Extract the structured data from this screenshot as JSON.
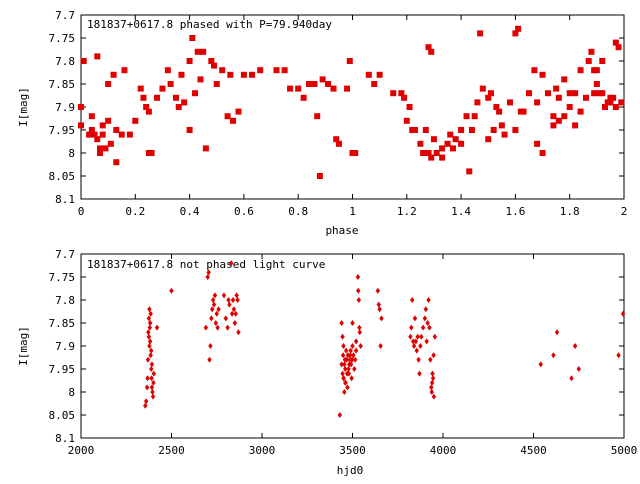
{
  "chart_data": [
    {
      "type": "scatter",
      "title": "181837+0617.8 phased with P=79.940day",
      "xlabel": "phase",
      "ylabel": "I[mag]",
      "xlim": [
        0,
        2
      ],
      "ylim": [
        7.7,
        8.1
      ],
      "y_inverted": true,
      "grid": false,
      "marker_color": "#e00000",
      "x_ticks": [
        "0",
        "0.2",
        "0.4",
        "0.6",
        "0.8",
        "1",
        "1.2",
        "1.4",
        "1.6",
        "1.8",
        "2"
      ],
      "x_tick_values": [
        0,
        0.2,
        0.4,
        0.6,
        0.8,
        1.0,
        1.2,
        1.4,
        1.6,
        1.8,
        2.0
      ],
      "y_ticks": [
        "7.7",
        "7.75",
        "7.8",
        "7.85",
        "7.9",
        "7.95",
        "8",
        "8.05",
        "8.1"
      ],
      "y_tick_values": [
        7.7,
        7.75,
        7.8,
        7.85,
        7.9,
        7.95,
        8.0,
        8.05,
        8.1
      ],
      "points": [
        [
          0.0,
          7.9
        ],
        [
          0.0,
          7.94
        ],
        [
          0.01,
          7.8
        ],
        [
          0.03,
          7.96
        ],
        [
          0.04,
          7.92
        ],
        [
          0.04,
          7.95
        ],
        [
          0.05,
          7.96
        ],
        [
          0.06,
          7.79
        ],
        [
          0.06,
          7.97
        ],
        [
          0.07,
          7.99
        ],
        [
          0.07,
          8.0
        ],
        [
          0.08,
          7.94
        ],
        [
          0.08,
          7.96
        ],
        [
          0.09,
          7.99
        ],
        [
          0.1,
          7.85
        ],
        [
          0.1,
          7.93
        ],
        [
          0.11,
          7.98
        ],
        [
          0.12,
          7.83
        ],
        [
          0.13,
          7.95
        ],
        [
          0.13,
          8.02
        ],
        [
          0.15,
          7.96
        ],
        [
          0.16,
          7.82
        ],
        [
          0.18,
          7.96
        ],
        [
          0.2,
          7.93
        ],
        [
          0.22,
          7.86
        ],
        [
          0.23,
          7.88
        ],
        [
          0.24,
          7.9
        ],
        [
          0.25,
          7.91
        ],
        [
          0.25,
          8.0
        ],
        [
          0.26,
          8.0
        ],
        [
          0.28,
          7.88
        ],
        [
          0.3,
          7.86
        ],
        [
          0.32,
          7.82
        ],
        [
          0.33,
          7.85
        ],
        [
          0.35,
          7.88
        ],
        [
          0.36,
          7.9
        ],
        [
          0.37,
          7.83
        ],
        [
          0.38,
          7.89
        ],
        [
          0.4,
          7.8
        ],
        [
          0.4,
          7.95
        ],
        [
          0.41,
          7.75
        ],
        [
          0.42,
          7.87
        ],
        [
          0.43,
          7.78
        ],
        [
          0.44,
          7.84
        ],
        [
          0.45,
          7.78
        ],
        [
          0.46,
          7.99
        ],
        [
          0.48,
          7.8
        ],
        [
          0.49,
          7.81
        ],
        [
          0.5,
          7.85
        ],
        [
          0.52,
          7.82
        ],
        [
          0.54,
          7.92
        ],
        [
          0.55,
          7.83
        ],
        [
          0.56,
          7.93
        ],
        [
          0.58,
          7.91
        ],
        [
          0.6,
          7.83
        ],
        [
          0.63,
          7.83
        ],
        [
          0.66,
          7.82
        ],
        [
          0.72,
          7.82
        ],
        [
          0.75,
          7.82
        ],
        [
          0.77,
          7.86
        ],
        [
          0.8,
          7.86
        ],
        [
          0.82,
          7.88
        ],
        [
          0.84,
          7.85
        ],
        [
          0.86,
          7.85
        ],
        [
          0.87,
          7.92
        ],
        [
          0.88,
          8.05
        ],
        [
          0.89,
          7.84
        ],
        [
          0.91,
          7.85
        ],
        [
          0.93,
          7.86
        ],
        [
          0.94,
          7.97
        ],
        [
          0.95,
          7.98
        ],
        [
          0.98,
          7.86
        ],
        [
          0.99,
          7.8
        ],
        [
          1.0,
          8.0
        ],
        [
          1.01,
          8.0
        ],
        [
          1.06,
          7.83
        ],
        [
          1.08,
          7.85
        ],
        [
          1.1,
          7.83
        ],
        [
          1.15,
          7.87
        ],
        [
          1.18,
          7.87
        ],
        [
          1.19,
          7.88
        ],
        [
          1.2,
          7.93
        ],
        [
          1.21,
          7.9
        ],
        [
          1.22,
          7.95
        ],
        [
          1.23,
          7.95
        ],
        [
          1.25,
          7.98
        ],
        [
          1.26,
          8.0
        ],
        [
          1.27,
          7.95
        ],
        [
          1.28,
          8.0
        ],
        [
          1.29,
          8.01
        ],
        [
          1.3,
          7.97
        ],
        [
          1.31,
          8.0
        ],
        [
          1.33,
          8.01
        ],
        [
          1.35,
          7.98
        ],
        [
          1.36,
          7.96
        ],
        [
          1.38,
          7.97
        ],
        [
          1.4,
          7.95
        ],
        [
          1.42,
          7.92
        ],
        [
          1.44,
          7.95
        ],
        [
          1.45,
          7.92
        ],
        [
          1.46,
          7.89
        ],
        [
          1.48,
          7.86
        ],
        [
          1.5,
          7.88
        ],
        [
          1.51,
          7.87
        ],
        [
          1.53,
          7.9
        ],
        [
          1.54,
          7.91
        ],
        [
          1.56,
          7.96
        ],
        [
          1.58,
          7.89
        ],
        [
          1.6,
          7.95
        ],
        [
          1.62,
          7.91
        ],
        [
          1.65,
          7.87
        ],
        [
          1.68,
          7.89
        ],
        [
          1.7,
          7.83
        ],
        [
          1.7,
          8.0
        ],
        [
          1.72,
          7.87
        ],
        [
          1.74,
          7.92
        ],
        [
          1.75,
          7.86
        ],
        [
          1.76,
          7.88
        ],
        [
          1.78,
          7.92
        ],
        [
          1.8,
          7.9
        ],
        [
          1.82,
          7.87
        ],
        [
          1.84,
          7.82
        ],
        [
          1.86,
          7.88
        ],
        [
          1.88,
          7.78
        ],
        [
          1.89,
          7.87
        ],
        [
          1.9,
          7.85
        ],
        [
          1.91,
          7.87
        ],
        [
          1.92,
          7.87
        ],
        [
          1.93,
          7.9
        ],
        [
          1.94,
          7.89
        ],
        [
          1.95,
          7.89
        ],
        [
          1.96,
          7.88
        ],
        [
          1.97,
          7.9
        ],
        [
          1.98,
          7.77
        ],
        [
          1.99,
          7.89
        ],
        [
          1.47,
          7.74
        ],
        [
          1.78,
          7.84
        ],
        [
          1.82,
          7.94
        ],
        [
          1.5,
          7.97
        ],
        [
          1.52,
          7.95
        ],
        [
          1.55,
          7.94
        ],
        [
          1.6,
          7.74
        ],
        [
          1.61,
          7.73
        ],
        [
          1.63,
          7.91
        ],
        [
          1.67,
          7.82
        ],
        [
          1.68,
          7.98
        ],
        [
          1.74,
          7.94
        ],
        [
          1.76,
          7.93
        ],
        [
          1.8,
          7.87
        ],
        [
          1.84,
          7.91
        ],
        [
          1.87,
          7.8
        ],
        [
          1.89,
          7.82
        ],
        [
          1.9,
          7.82
        ],
        [
          1.92,
          7.8
        ],
        [
          1.95,
          7.88
        ],
        [
          1.97,
          7.76
        ],
        [
          1.28,
          7.77
        ],
        [
          1.29,
          7.78
        ],
        [
          1.33,
          7.99
        ],
        [
          1.37,
          7.99
        ],
        [
          1.4,
          7.98
        ],
        [
          1.43,
          8.04
        ]
      ]
    },
    {
      "type": "scatter",
      "title": "181837+0617.8 not phased light curve",
      "xlabel": "hjd0",
      "ylabel": "I[mag]",
      "xlim": [
        2000,
        5000
      ],
      "ylim": [
        7.7,
        8.1
      ],
      "y_inverted": true,
      "grid": false,
      "marker_color": "#e00000",
      "x_ticks": [
        "2000",
        "2500",
        "3000",
        "3500",
        "4000",
        "4500",
        "5000"
      ],
      "x_tick_values": [
        2000,
        2500,
        3000,
        3500,
        4000,
        4500,
        5000
      ],
      "y_ticks": [
        "7.7",
        "7.75",
        "7.8",
        "7.85",
        "7.9",
        "7.95",
        "8",
        "8.05",
        "8.1"
      ],
      "y_tick_values": [
        7.7,
        7.75,
        7.8,
        7.85,
        7.9,
        7.95,
        8.0,
        8.05,
        8.1
      ],
      "points": [
        [
          2355,
          8.03
        ],
        [
          2360,
          8.02
        ],
        [
          2365,
          7.99
        ],
        [
          2368,
          7.97
        ],
        [
          2370,
          7.93
        ],
        [
          2372,
          7.87
        ],
        [
          2375,
          7.84
        ],
        [
          2378,
          7.82
        ],
        [
          2380,
          7.86
        ],
        [
          2382,
          7.89
        ],
        [
          2385,
          7.92
        ],
        [
          2388,
          7.95
        ],
        [
          2390,
          7.97
        ],
        [
          2392,
          7.99
        ],
        [
          2395,
          8.0
        ],
        [
          2398,
          8.01
        ],
        [
          2400,
          7.98
        ],
        [
          2402,
          7.96
        ],
        [
          2375,
          7.88
        ],
        [
          2378,
          7.9
        ],
        [
          2382,
          7.85
        ],
        [
          2385,
          7.83
        ],
        [
          2388,
          7.91
        ],
        [
          2392,
          7.94
        ],
        [
          2420,
          7.86
        ],
        [
          2500,
          7.78
        ],
        [
          2690,
          7.86
        ],
        [
          2700,
          7.75
        ],
        [
          2705,
          7.74
        ],
        [
          2710,
          7.93
        ],
        [
          2715,
          7.9
        ],
        [
          2720,
          7.84
        ],
        [
          2725,
          7.82
        ],
        [
          2730,
          7.8
        ],
        [
          2735,
          7.81
        ],
        [
          2740,
          7.79
        ],
        [
          2745,
          7.85
        ],
        [
          2750,
          7.83
        ],
        [
          2755,
          7.86
        ],
        [
          2760,
          7.82
        ],
        [
          2790,
          7.79
        ],
        [
          2800,
          7.84
        ],
        [
          2810,
          7.86
        ],
        [
          2815,
          7.8
        ],
        [
          2820,
          7.81
        ],
        [
          2830,
          7.72
        ],
        [
          2835,
          7.83
        ],
        [
          2840,
          7.8
        ],
        [
          2845,
          7.82
        ],
        [
          2850,
          7.85
        ],
        [
          2855,
          7.83
        ],
        [
          2860,
          7.79
        ],
        [
          2865,
          7.8
        ],
        [
          2870,
          7.87
        ],
        [
          3430,
          8.05
        ],
        [
          3440,
          7.94
        ],
        [
          3445,
          7.96
        ],
        [
          3448,
          7.92
        ],
        [
          3450,
          7.9
        ],
        [
          3452,
          7.97
        ],
        [
          3455,
          7.94
        ],
        [
          3458,
          7.93
        ],
        [
          3460,
          7.95
        ],
        [
          3462,
          7.98
        ],
        [
          3465,
          7.91
        ],
        [
          3468,
          7.93
        ],
        [
          3470,
          7.96
        ],
        [
          3472,
          7.99
        ],
        [
          3475,
          7.92
        ],
        [
          3478,
          7.95
        ],
        [
          3480,
          7.96
        ],
        [
          3482,
          7.94
        ],
        [
          3485,
          7.93
        ],
        [
          3488,
          7.92
        ],
        [
          3490,
          7.91
        ],
        [
          3492,
          7.94
        ],
        [
          3495,
          7.97
        ],
        [
          3498,
          7.93
        ],
        [
          3500,
          7.9
        ],
        [
          3505,
          7.92
        ],
        [
          3510,
          7.95
        ],
        [
          3515,
          7.93
        ],
        [
          3520,
          7.91
        ],
        [
          3440,
          7.85
        ],
        [
          3445,
          7.88
        ],
        [
          3450,
          7.97
        ],
        [
          3455,
          8.0
        ],
        [
          3460,
          7.98
        ],
        [
          3500,
          7.85
        ],
        [
          3520,
          7.89
        ],
        [
          3530,
          7.75
        ],
        [
          3532,
          7.78
        ],
        [
          3535,
          7.8
        ],
        [
          3538,
          7.86
        ],
        [
          3540,
          7.87
        ],
        [
          3545,
          7.9
        ],
        [
          3640,
          7.78
        ],
        [
          3645,
          7.81
        ],
        [
          3650,
          7.82
        ],
        [
          3655,
          7.9
        ],
        [
          3660,
          7.84
        ],
        [
          3820,
          7.88
        ],
        [
          3825,
          7.86
        ],
        [
          3830,
          7.8
        ],
        [
          3835,
          7.89
        ],
        [
          3840,
          7.9
        ],
        [
          3845,
          7.84
        ],
        [
          3850,
          7.89
        ],
        [
          3855,
          7.91
        ],
        [
          3860,
          7.88
        ],
        [
          3865,
          7.93
        ],
        [
          3870,
          7.96
        ],
        [
          3875,
          7.9
        ],
        [
          3880,
          7.88
        ],
        [
          3890,
          7.86
        ],
        [
          3900,
          7.84
        ],
        [
          3905,
          7.82
        ],
        [
          3910,
          7.89
        ],
        [
          3915,
          7.85
        ],
        [
          3920,
          7.8
        ],
        [
          3925,
          7.86
        ],
        [
          3930,
          7.93
        ],
        [
          3935,
          7.99
        ],
        [
          3938,
          8.0
        ],
        [
          3940,
          7.98
        ],
        [
          3942,
          7.96
        ],
        [
          3945,
          7.97
        ],
        [
          3948,
          7.92
        ],
        [
          3950,
          8.01
        ],
        [
          3955,
          7.88
        ],
        [
          4540,
          7.94
        ],
        [
          4610,
          7.92
        ],
        [
          4630,
          7.87
        ],
        [
          4710,
          7.97
        ],
        [
          4730,
          7.9
        ],
        [
          4750,
          7.95
        ],
        [
          4970,
          7.92
        ],
        [
          4995,
          7.83
        ]
      ]
    }
  ]
}
